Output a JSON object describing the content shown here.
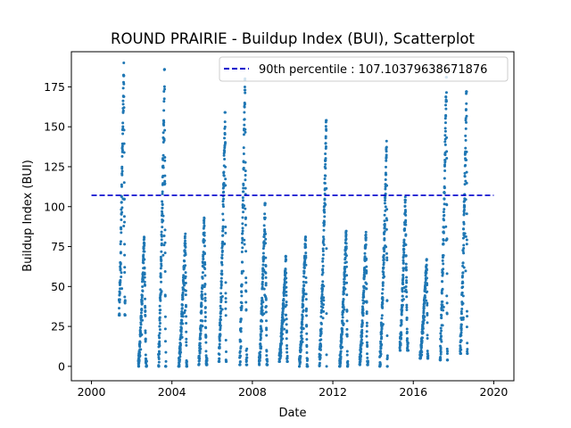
{
  "chart_data": {
    "type": "scatter",
    "title": "ROUND PRAIRIE - Buildup Index (BUI), Scatterplot",
    "xlabel": "Date",
    "ylabel": "Buildup Index (BUI)",
    "xlim": [
      "1999-01-01",
      "2021-01-01"
    ],
    "ylim": [
      -9,
      197
    ],
    "x_ticks": [
      "2000",
      "2004",
      "2008",
      "2012",
      "2016",
      "2020"
    ],
    "y_ticks": [
      0,
      25,
      50,
      75,
      100,
      125,
      150,
      175
    ],
    "legend": {
      "placement": "top-right",
      "entries": [
        "90th percentile : 107.10379638671876"
      ]
    },
    "reference_line": {
      "name": "90th percentile : 107.10379638671876",
      "value": 107.10379638671876,
      "x_start": "2000-01-01",
      "x_end": "2020-01-01",
      "style": "dashed",
      "color": "#0000cc"
    },
    "series_color": "#1f77b4",
    "seasons": [
      {
        "start": "2001-05-15",
        "end": "2001-09-05",
        "min": 32,
        "peak": 190,
        "peak_date": "2001-08-10"
      },
      {
        "start": "2002-05-01",
        "end": "2002-09-30",
        "min": 0,
        "peak": 81,
        "peak_date": "2002-08-15"
      },
      {
        "start": "2003-05-01",
        "end": "2003-09-15",
        "min": 0,
        "peak": 186,
        "peak_date": "2003-08-20"
      },
      {
        "start": "2004-05-01",
        "end": "2004-09-30",
        "min": 0,
        "peak": 83,
        "peak_date": "2004-09-01"
      },
      {
        "start": "2005-05-01",
        "end": "2005-09-30",
        "min": 1,
        "peak": 93,
        "peak_date": "2005-08-10"
      },
      {
        "start": "2006-05-01",
        "end": "2006-09-15",
        "min": 3,
        "peak": 159,
        "peak_date": "2006-08-25"
      },
      {
        "start": "2007-05-15",
        "end": "2007-09-25",
        "min": 1,
        "peak": 182,
        "peak_date": "2007-08-20"
      },
      {
        "start": "2008-05-01",
        "end": "2008-09-30",
        "min": 1,
        "peak": 102,
        "peak_date": "2008-08-20"
      },
      {
        "start": "2009-05-01",
        "end": "2009-09-30",
        "min": 3,
        "peak": 69,
        "peak_date": "2009-09-01"
      },
      {
        "start": "2010-05-01",
        "end": "2010-09-30",
        "min": 0,
        "peak": 81,
        "peak_date": "2010-08-25"
      },
      {
        "start": "2011-05-01",
        "end": "2011-09-10",
        "min": 0,
        "peak": 154,
        "peak_date": "2011-09-05"
      },
      {
        "start": "2012-05-01",
        "end": "2012-09-30",
        "min": 0,
        "peak": 85,
        "peak_date": "2012-09-01"
      },
      {
        "start": "2013-05-01",
        "end": "2013-09-30",
        "min": 1,
        "peak": 84,
        "peak_date": "2013-08-25"
      },
      {
        "start": "2014-05-01",
        "end": "2014-09-20",
        "min": 0,
        "peak": 141,
        "peak_date": "2014-09-05"
      },
      {
        "start": "2015-05-01",
        "end": "2015-09-30",
        "min": 10,
        "peak": 106,
        "peak_date": "2015-08-10"
      },
      {
        "start": "2016-05-01",
        "end": "2016-09-25",
        "min": 5,
        "peak": 67,
        "peak_date": "2016-09-01"
      },
      {
        "start": "2017-05-01",
        "end": "2017-09-15",
        "min": 4,
        "peak": 181,
        "peak_date": "2017-08-25"
      },
      {
        "start": "2018-05-01",
        "end": "2018-09-10",
        "min": 8,
        "peak": 172,
        "peak_date": "2018-08-25"
      }
    ]
  }
}
